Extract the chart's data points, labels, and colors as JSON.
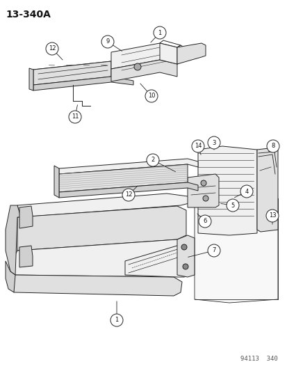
{
  "title": "13-340A",
  "footer": "94113  340",
  "bg_color": "#ffffff",
  "lc": "#222222",
  "fig_width": 4.14,
  "fig_height": 5.33,
  "dpi": 100,
  "light_fill": "#f0f0f0",
  "mid_fill": "#e0e0e0",
  "dark_fill": "#c8c8c8",
  "hatch_fill": "#d8d8d8"
}
